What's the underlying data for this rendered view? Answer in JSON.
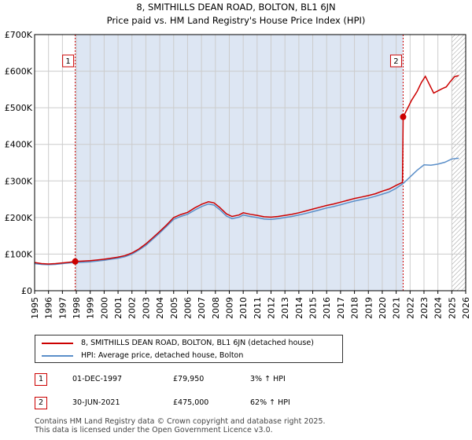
{
  "chart_data": {
    "type": "line",
    "title": "8, SMITHILLS DEAN ROAD, BOLTON, BL1 6JN",
    "subtitle": "Price paid vs. HM Land Registry's House Price Index (HPI)",
    "xlabel": "",
    "ylabel": "",
    "xlim": [
      1995,
      2026
    ],
    "ylim": [
      0,
      700000
    ],
    "x_ticks": [
      "1995",
      "1996",
      "1997",
      "1998",
      "1999",
      "2000",
      "2001",
      "2002",
      "2003",
      "2004",
      "2005",
      "2006",
      "2007",
      "2008",
      "2009",
      "2010",
      "2011",
      "2012",
      "2013",
      "2014",
      "2015",
      "2016",
      "2017",
      "2018",
      "2019",
      "2020",
      "2021",
      "2022",
      "2023",
      "2024",
      "2025",
      "2026"
    ],
    "y_ticks": [
      {
        "value": 0,
        "label": "£0"
      },
      {
        "value": 100000,
        "label": "£100K"
      },
      {
        "value": 200000,
        "label": "£200K"
      },
      {
        "value": 300000,
        "label": "£300K"
      },
      {
        "value": 400000,
        "label": "£400K"
      },
      {
        "value": 500000,
        "label": "£500K"
      },
      {
        "value": 600000,
        "label": "£600K"
      },
      {
        "value": 700000,
        "label": "£700K"
      }
    ],
    "grid": true,
    "colors": {
      "property": "#cc0000",
      "hpi": "#5b8fc9",
      "shade": "#dde6f3",
      "hatch": "#999999",
      "axis": "#000000",
      "grid": "#cccccc"
    },
    "shaded_ranges": [
      {
        "x0": 1997.92,
        "x1": 2021.5
      }
    ],
    "future_hatch_from": 2025.0,
    "series": [
      {
        "name": "8, SMITHILLS DEAN ROAD, BOLTON, BL1 6JN (detached house)",
        "color": "#cc0000",
        "x": [
          1995,
          1995.5,
          1996,
          1996.5,
          1997,
          1997.5,
          1997.92,
          1998.5,
          1999,
          1999.5,
          2000,
          2000.5,
          2001,
          2001.5,
          2002,
          2002.5,
          2003,
          2003.5,
          2004,
          2004.5,
          2005,
          2005.5,
          2006,
          2006.5,
          2007,
          2007.5,
          2007.9,
          2008.3,
          2008.8,
          2009.2,
          2009.7,
          2010,
          2010.5,
          2011,
          2011.5,
          2012,
          2012.5,
          2013,
          2013.5,
          2014,
          2014.5,
          2015,
          2015.5,
          2016,
          2016.5,
          2017,
          2017.5,
          2018,
          2018.5,
          2019,
          2019.5,
          2020,
          2020.5,
          2021,
          2021.45,
          2021.5,
          2021.8,
          2022.1,
          2022.5,
          2022.8,
          2023.1,
          2023.4,
          2023.7,
          2024,
          2024.3,
          2024.6,
          2024.9,
          2025.2,
          2025.5
        ],
        "y": [
          77000,
          74000,
          73000,
          74000,
          76000,
          78000,
          79950,
          81000,
          82000,
          84000,
          86000,
          89000,
          92000,
          96000,
          103000,
          114000,
          128000,
          145000,
          162000,
          180000,
          200000,
          208000,
          214000,
          226000,
          236000,
          243000,
          240000,
          228000,
          210000,
          203000,
          207000,
          213000,
          209000,
          206000,
          202000,
          201000,
          203000,
          206000,
          209000,
          213000,
          218000,
          223000,
          228000,
          233000,
          237000,
          242000,
          247000,
          252000,
          256000,
          260000,
          265000,
          272000,
          278000,
          288000,
          296000,
          475000,
          497000,
          520000,
          544000,
          568000,
          586000,
          563000,
          540000,
          546000,
          552000,
          557000,
          572000,
          585000,
          588000
        ]
      },
      {
        "name": "HPI: Average price, detached house, Bolton",
        "color": "#5b8fc9",
        "x": [
          1995,
          1995.5,
          1996,
          1996.5,
          1997,
          1997.5,
          1998,
          1998.5,
          1999,
          1999.5,
          2000,
          2000.5,
          2001,
          2001.5,
          2002,
          2002.5,
          2003,
          2003.5,
          2004,
          2004.5,
          2005,
          2005.5,
          2006,
          2006.5,
          2007,
          2007.5,
          2007.9,
          2008.3,
          2008.8,
          2009.2,
          2009.7,
          2010,
          2010.5,
          2011,
          2011.5,
          2012,
          2012.5,
          2013,
          2013.5,
          2014,
          2014.5,
          2015,
          2015.5,
          2016,
          2016.5,
          2017,
          2017.5,
          2018,
          2018.5,
          2019,
          2019.5,
          2020,
          2020.5,
          2021,
          2021.5,
          2022,
          2022.5,
          2023,
          2023.5,
          2024,
          2024.5,
          2025,
          2025.5
        ],
        "y": [
          74000,
          72000,
          71000,
          72000,
          74000,
          76000,
          77000,
          78000,
          79000,
          81000,
          83000,
          86000,
          89000,
          93000,
          100000,
          111000,
          124000,
          141000,
          158000,
          176000,
          195000,
          203000,
          209000,
          220000,
          230000,
          237000,
          234000,
          222000,
          204000,
          197000,
          201000,
          207000,
          203000,
          200000,
          196000,
          195000,
          197000,
          200000,
          203000,
          207000,
          211000,
          216000,
          221000,
          226000,
          230000,
          235000,
          240000,
          245000,
          249000,
          253000,
          258000,
          264000,
          270000,
          280000,
          293000,
          311000,
          329000,
          344000,
          343000,
          346000,
          351000,
          360000,
          362000
        ]
      }
    ],
    "markers": [
      {
        "label": "1",
        "x": 1997.92,
        "y": 79950
      },
      {
        "label": "2",
        "x": 2021.5,
        "y": 475000
      }
    ]
  },
  "legend": {
    "property_label": "8, SMITHILLS DEAN ROAD, BOLTON, BL1 6JN (detached house)",
    "hpi_label": "HPI: Average price, detached house, Bolton"
  },
  "transactions": [
    {
      "id": "1",
      "date": "01-DEC-1997",
      "price": "£79,950",
      "hpi": "3% ↑ HPI"
    },
    {
      "id": "2",
      "date": "30-JUN-2021",
      "price": "£475,000",
      "hpi": "62% ↑ HPI"
    }
  ],
  "footer": {
    "line1": "Contains HM Land Registry data © Crown copyright and database right 2025.",
    "line2": "This data is licensed under the Open Government Licence v3.0."
  }
}
